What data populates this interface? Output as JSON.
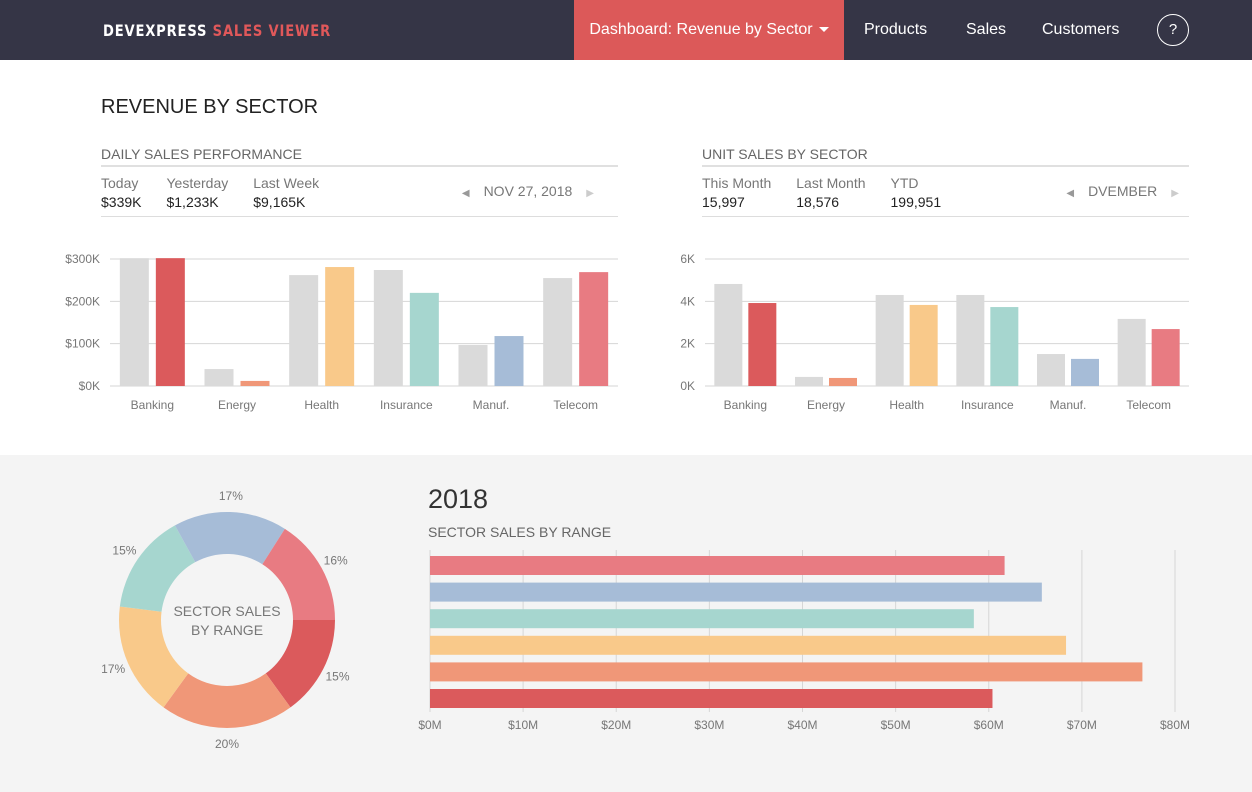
{
  "nav": {
    "logo_a": "DEVEXPRESS",
    "logo_b": "SALES VIEWER",
    "active": "Dashboard: Revenue by Sector",
    "items": [
      "Products",
      "Sales",
      "Customers"
    ],
    "help": "?"
  },
  "page_title": "REVENUE BY SECTOR",
  "colors": {
    "gray": "#dadada",
    "sectors": [
      "#db5a5c",
      "#f09778",
      "#f9c98a",
      "#a6d6cf",
      "#a6bcd7",
      "#e87b82"
    ],
    "nav_bg": "#353546",
    "accent": "#dc5959"
  },
  "daily": {
    "title": "DAILY SALES PERFORMANCE",
    "stats": [
      {
        "label": "Today",
        "value": "$339K"
      },
      {
        "label": "Yesterday",
        "value": "$1,233K"
      },
      {
        "label": "Last Week",
        "value": "$9,165K"
      }
    ],
    "date": "NOV 27, 2018"
  },
  "units": {
    "title": "UNIT SALES BY SECTOR",
    "stats": [
      {
        "label": "This Month",
        "value": "15,997"
      },
      {
        "label": "Last Month",
        "value": "18,576"
      },
      {
        "label": "YTD",
        "value": "199,951"
      }
    ],
    "date": "DVEMBER"
  },
  "year": "2018",
  "range_title": "SECTOR SALES BY RANGE",
  "donut_center": [
    "SECTOR SALES",
    "BY RANGE"
  ],
  "chart_data": [
    {
      "type": "bar",
      "categories": [
        "Banking",
        "Energy",
        "Health",
        "Insurance",
        "Manuf.",
        "Telecom"
      ],
      "yticks": [
        "$0K",
        "$100K",
        "$200K",
        "$300K"
      ],
      "ylim": [
        0,
        300
      ],
      "grid": true,
      "series": [
        {
          "values": [
            302,
            40,
            262,
            274,
            97,
            255
          ]
        },
        {
          "values": [
            302,
            12,
            281,
            220,
            118,
            269
          ]
        }
      ]
    },
    {
      "type": "bar",
      "categories": [
        "Banking",
        "Energy",
        "Health",
        "Insurance",
        "Manuf.",
        "Telecom"
      ],
      "yticks": [
        "0K",
        "2K",
        "4K",
        "6K"
      ],
      "ylim": [
        0,
        6
      ],
      "grid": true,
      "series": [
        {
          "values": [
            4.82,
            0.43,
            4.3,
            4.3,
            1.51,
            3.17
          ]
        },
        {
          "values": [
            3.92,
            0.38,
            3.83,
            3.73,
            1.28,
            2.69
          ]
        }
      ]
    },
    {
      "type": "pie",
      "donut": true,
      "values": [
        15,
        20,
        17,
        15,
        17,
        16
      ],
      "labels": [
        "15%",
        "20%",
        "17%",
        "15%",
        "17%",
        "16%"
      ]
    },
    {
      "type": "bar",
      "orientation": "horizontal",
      "values": [
        60.4,
        76.5,
        68.3,
        58.4,
        65.7,
        61.7
      ],
      "xticks": [
        "$0M",
        "$10M",
        "$20M",
        "$30M",
        "$40M",
        "$50M",
        "$60M",
        "$70M",
        "$80M"
      ],
      "xlim": [
        0,
        80
      ],
      "grid": true
    }
  ]
}
